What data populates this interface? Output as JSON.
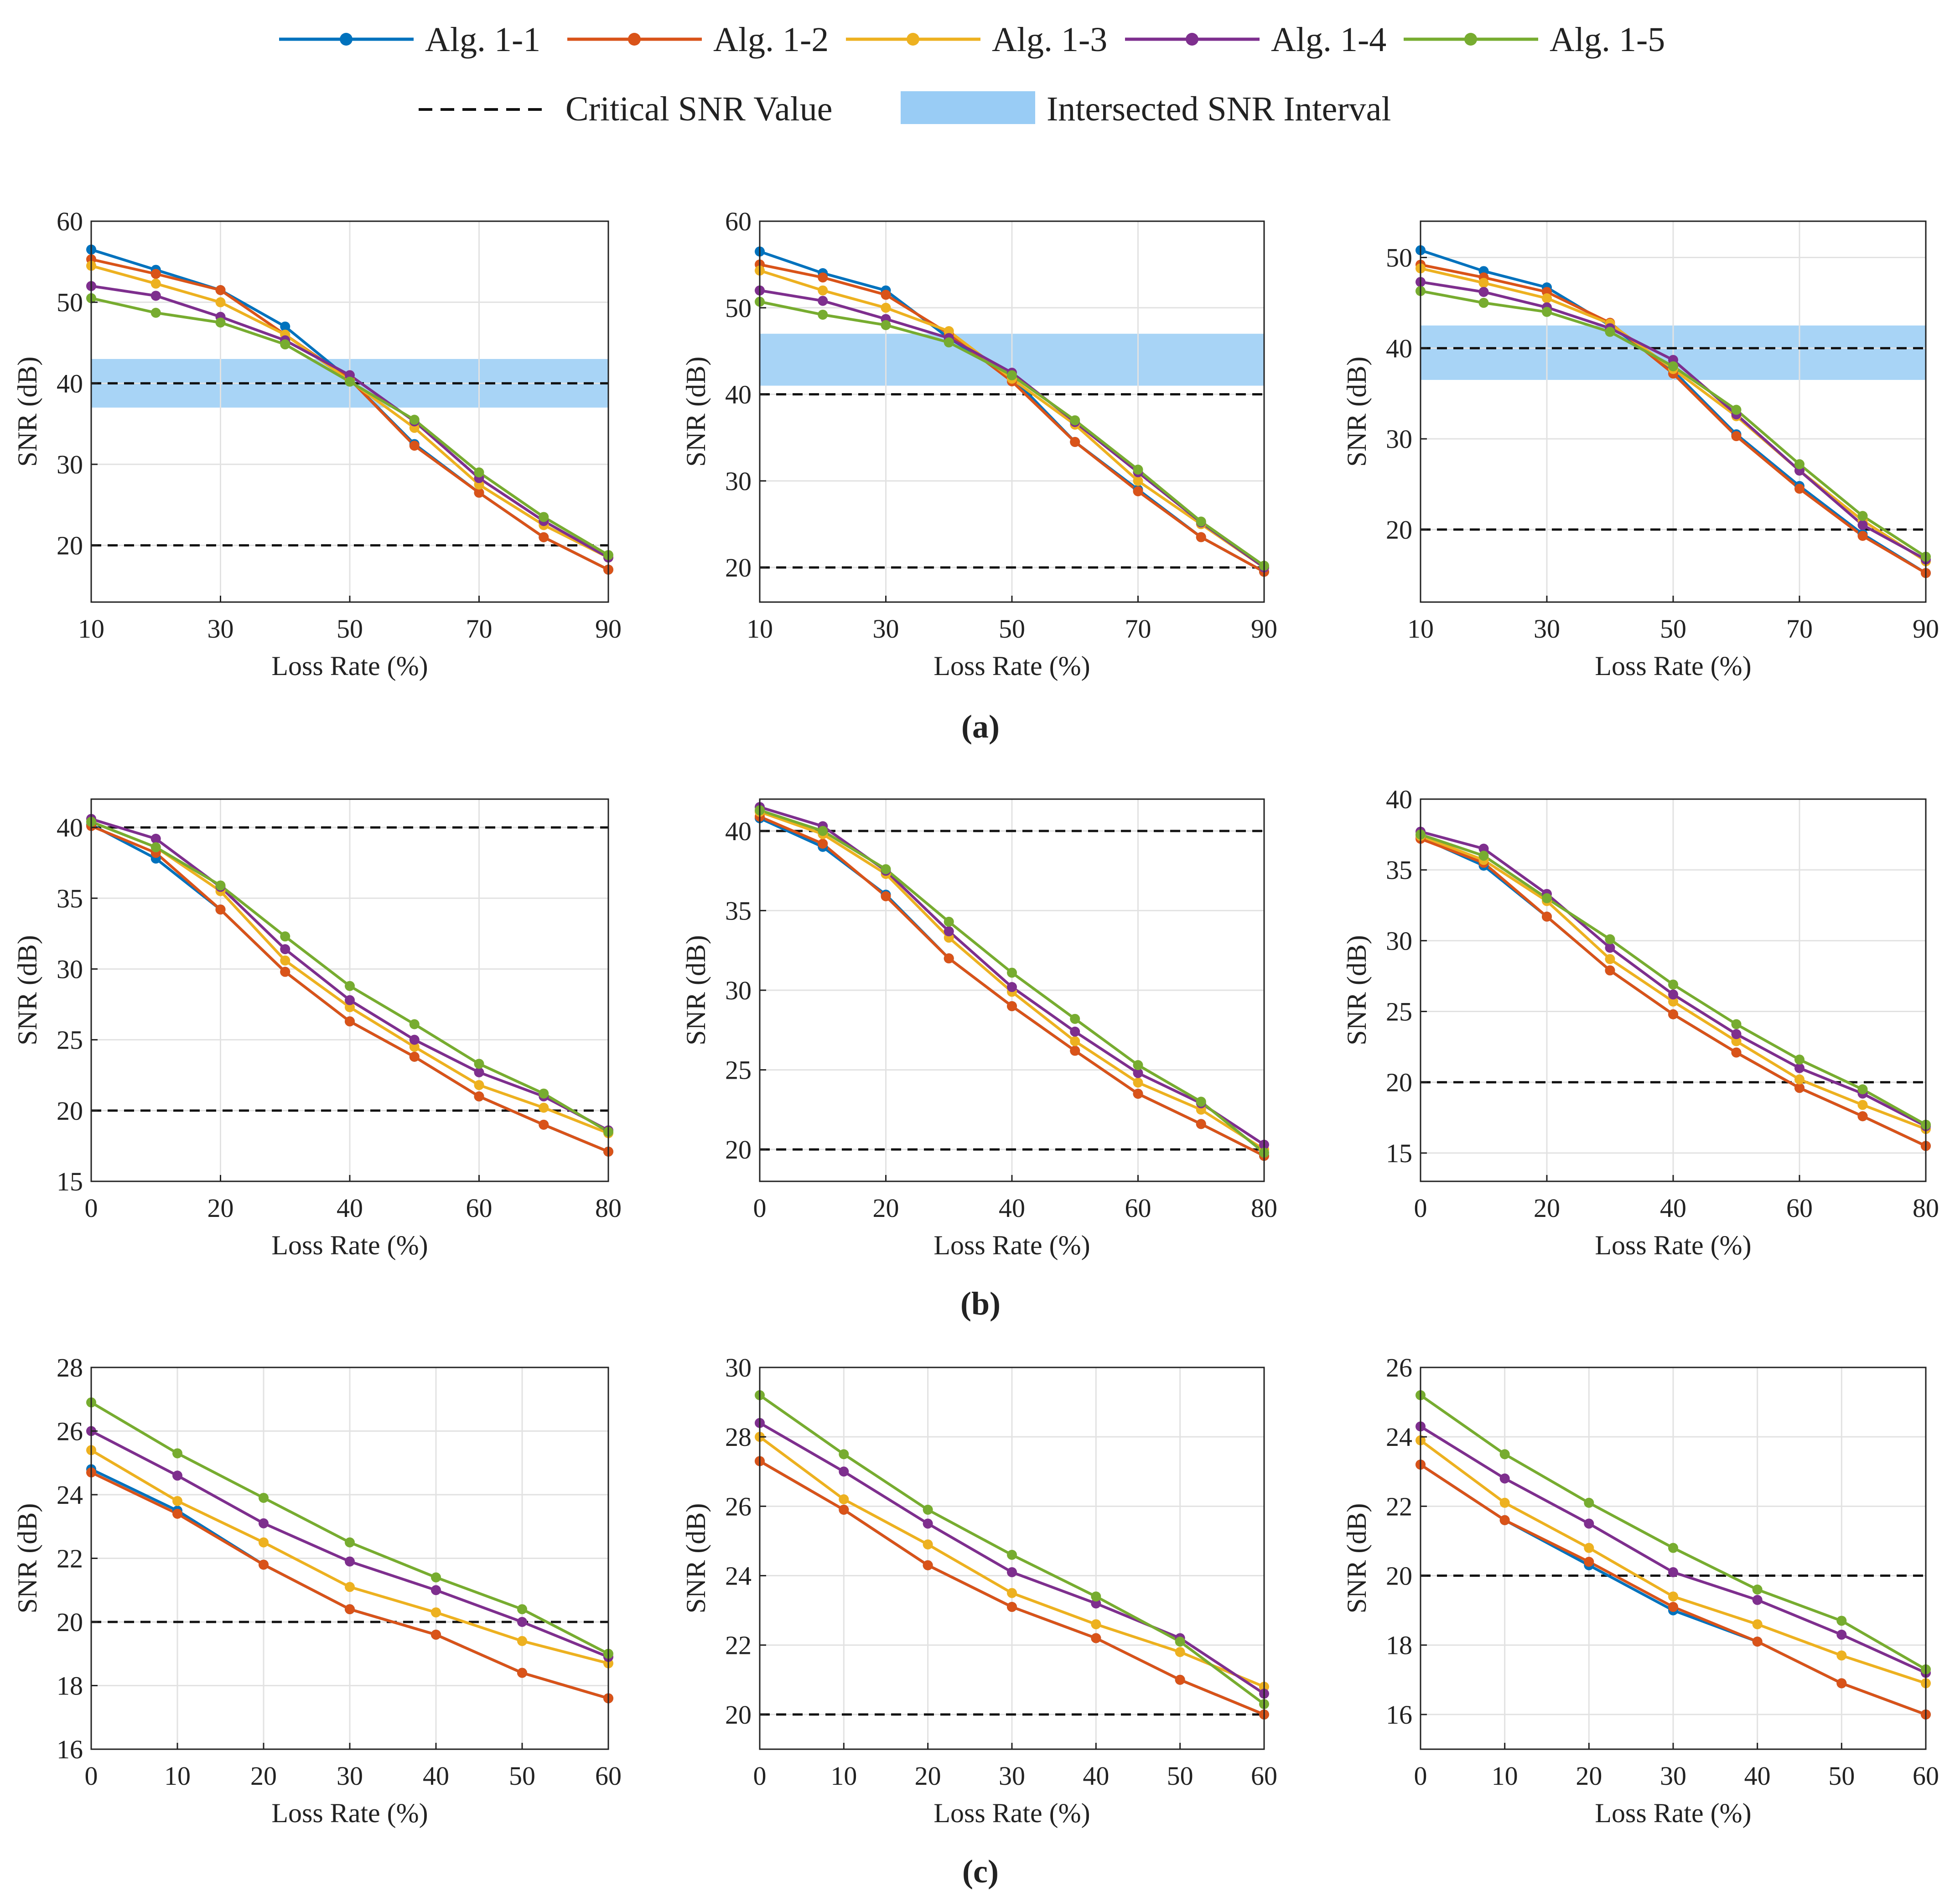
{
  "legend": {
    "items": [
      {
        "label": "Alg. 1-1",
        "color": "#0072BD"
      },
      {
        "label": "Alg. 1-2",
        "color": "#D95319"
      },
      {
        "label": "Alg. 1-3",
        "color": "#EDB120"
      },
      {
        "label": "Alg. 1-4",
        "color": "#7E2F8E"
      },
      {
        "label": "Alg. 1-5",
        "color": "#77AC30"
      }
    ],
    "critical_label": "Critical SNR Value",
    "interval_label": "Intersected SNR Interval",
    "interval_color": "#99CCF5"
  },
  "row_labels": [
    "(a)",
    "(b)",
    "(c)"
  ],
  "chart_data": [
    {
      "type": "line",
      "row": "a",
      "title": "",
      "xlabel": "Loss Rate (%)",
      "ylabel": "SNR (dB)",
      "xlim": [
        10,
        90
      ],
      "ylim": [
        13,
        60
      ],
      "xticks": [
        10,
        30,
        50,
        70,
        90
      ],
      "yticks": [
        20,
        30,
        40,
        50,
        60
      ],
      "x": [
        10,
        20,
        30,
        40,
        50,
        60,
        70,
        80,
        90
      ],
      "critical": [
        40,
        20
      ],
      "interval": [
        37,
        43
      ],
      "series": [
        {
          "name": "Alg. 1-1",
          "values": [
            56.5,
            54,
            51.5,
            47,
            40.5,
            32.5,
            26.5,
            21,
            17
          ]
        },
        {
          "name": "Alg. 1-2",
          "values": [
            55.3,
            53.5,
            51.5,
            46,
            40.5,
            32.3,
            26.5,
            21,
            17
          ]
        },
        {
          "name": "Alg. 1-3",
          "values": [
            54.5,
            52.3,
            50,
            46,
            40.3,
            34.5,
            27.5,
            22.5,
            18.5
          ]
        },
        {
          "name": "Alg. 1-4",
          "values": [
            52,
            50.8,
            48.2,
            45.3,
            41,
            35.3,
            28.3,
            23,
            18.5
          ]
        },
        {
          "name": "Alg. 1-5",
          "values": [
            50.5,
            48.7,
            47.5,
            44.8,
            40.2,
            35.5,
            29,
            23.5,
            18.8
          ]
        }
      ]
    },
    {
      "type": "line",
      "row": "a",
      "title": "",
      "xlabel": "Loss Rate (%)",
      "ylabel": "SNR (dB)",
      "xlim": [
        10,
        90
      ],
      "ylim": [
        16,
        60
      ],
      "xticks": [
        10,
        30,
        50,
        70,
        90
      ],
      "yticks": [
        20,
        30,
        40,
        50,
        60
      ],
      "x": [
        10,
        20,
        30,
        40,
        50,
        60,
        70,
        80,
        90
      ],
      "critical": [
        40,
        20
      ],
      "interval": [
        41,
        47
      ],
      "series": [
        {
          "name": "Alg. 1-1",
          "values": [
            56.5,
            54,
            52,
            46.5,
            42,
            34.5,
            29,
            23.5,
            19.5
          ]
        },
        {
          "name": "Alg. 1-2",
          "values": [
            55,
            53.5,
            51.5,
            47,
            41.5,
            34.5,
            28.8,
            23.5,
            19.5
          ]
        },
        {
          "name": "Alg. 1-3",
          "values": [
            54.3,
            52,
            50,
            47.3,
            41.8,
            36.5,
            30,
            25,
            20
          ]
        },
        {
          "name": "Alg. 1-4",
          "values": [
            52,
            50.8,
            48.7,
            46.5,
            42.5,
            36.8,
            31,
            25.2,
            20
          ]
        },
        {
          "name": "Alg. 1-5",
          "values": [
            50.7,
            49.2,
            48,
            46,
            42.2,
            37,
            31.3,
            25.3,
            20.2
          ]
        }
      ]
    },
    {
      "type": "line",
      "row": "a",
      "title": "",
      "xlabel": "Loss Rate (%)",
      "ylabel": "SNR (dB)",
      "xlim": [
        10,
        90
      ],
      "ylim": [
        12,
        54
      ],
      "xticks": [
        10,
        30,
        50,
        70,
        90
      ],
      "yticks": [
        20,
        30,
        40,
        50
      ],
      "x": [
        10,
        20,
        30,
        40,
        50,
        60,
        70,
        80,
        90
      ],
      "critical": [
        40,
        20
      ],
      "interval": [
        36.5,
        42.5
      ],
      "series": [
        {
          "name": "Alg. 1-1",
          "values": [
            50.8,
            48.5,
            46.7,
            42.5,
            37.5,
            30.5,
            24.8,
            19.5,
            15.2
          ]
        },
        {
          "name": "Alg. 1-2",
          "values": [
            49.2,
            47.8,
            46.2,
            42.8,
            37.2,
            30.3,
            24.5,
            19.3,
            15.2
          ]
        },
        {
          "name": "Alg. 1-3",
          "values": [
            48.8,
            47.2,
            45.5,
            42.7,
            37.7,
            32.5,
            26.5,
            21,
            16.5
          ]
        },
        {
          "name": "Alg. 1-4",
          "values": [
            47.3,
            46.2,
            44.5,
            42.2,
            38.7,
            32.7,
            26.5,
            20.5,
            16.7
          ]
        },
        {
          "name": "Alg. 1-5",
          "values": [
            46.3,
            45,
            44,
            41.8,
            38,
            33.2,
            27.2,
            21.5,
            17
          ]
        }
      ]
    },
    {
      "type": "line",
      "row": "b",
      "title": "",
      "xlabel": "Loss Rate (%)",
      "ylabel": "SNR (dB)",
      "xlim": [
        0,
        80
      ],
      "ylim": [
        15,
        42
      ],
      "xticks": [
        0,
        20,
        40,
        60,
        80
      ],
      "yticks": [
        15,
        20,
        25,
        30,
        35,
        40
      ],
      "x": [
        0,
        10,
        20,
        30,
        40,
        50,
        60,
        70,
        80
      ],
      "critical": [
        40,
        20
      ],
      "interval": null,
      "series": [
        {
          "name": "Alg. 1-1",
          "values": [
            40.2,
            37.8,
            34.2,
            29.8,
            26.3,
            23.8,
            21,
            19,
            17.1
          ]
        },
        {
          "name": "Alg. 1-2",
          "values": [
            40.1,
            38.2,
            34.2,
            29.8,
            26.3,
            23.8,
            21,
            19,
            17.1
          ]
        },
        {
          "name": "Alg. 1-3",
          "values": [
            40.4,
            38.6,
            35.5,
            30.6,
            27.3,
            24.5,
            21.8,
            20.2,
            18.4
          ]
        },
        {
          "name": "Alg. 1-4",
          "values": [
            40.6,
            39.2,
            35.8,
            31.4,
            27.8,
            25,
            22.7,
            21,
            18.6
          ]
        },
        {
          "name": "Alg. 1-5",
          "values": [
            40.4,
            38.6,
            35.9,
            32.3,
            28.8,
            26.1,
            23.3,
            21.2,
            18.5
          ]
        }
      ]
    },
    {
      "type": "line",
      "row": "b",
      "title": "",
      "xlabel": "Loss Rate (%)",
      "ylabel": "SNR (dB)",
      "xlim": [
        0,
        80
      ],
      "ylim": [
        18,
        42
      ],
      "xticks": [
        0,
        20,
        40,
        60,
        80
      ],
      "yticks": [
        20,
        25,
        30,
        35,
        40
      ],
      "x": [
        0,
        10,
        20,
        30,
        40,
        50,
        60,
        70,
        80
      ],
      "critical": [
        40,
        20
      ],
      "interval": null,
      "series": [
        {
          "name": "Alg. 1-1",
          "values": [
            40.8,
            39,
            36,
            32,
            29,
            26.2,
            23.5,
            21.6,
            19.6
          ]
        },
        {
          "name": "Alg. 1-2",
          "values": [
            40.9,
            39.2,
            35.9,
            32,
            29,
            26.2,
            23.5,
            21.6,
            19.6
          ]
        },
        {
          "name": "Alg. 1-3",
          "values": [
            41.2,
            39.8,
            37.3,
            33.3,
            29.9,
            26.8,
            24.2,
            22.5,
            20
          ]
        },
        {
          "name": "Alg. 1-4",
          "values": [
            41.5,
            40.3,
            37.5,
            33.7,
            30.2,
            27.4,
            24.8,
            22.9,
            20.3
          ]
        },
        {
          "name": "Alg. 1-5",
          "values": [
            41.3,
            40,
            37.6,
            34.3,
            31.1,
            28.2,
            25.3,
            23,
            19.8
          ]
        }
      ]
    },
    {
      "type": "line",
      "row": "b",
      "title": "",
      "xlabel": "Loss Rate (%)",
      "ylabel": "SNR (dB)",
      "xlim": [
        0,
        80
      ],
      "ylim": [
        13,
        40
      ],
      "xticks": [
        0,
        20,
        40,
        60,
        80
      ],
      "yticks": [
        15,
        20,
        25,
        30,
        35,
        40
      ],
      "x": [
        0,
        10,
        20,
        30,
        40,
        50,
        60,
        70,
        80
      ],
      "critical": [
        20
      ],
      "interval": null,
      "series": [
        {
          "name": "Alg. 1-1",
          "values": [
            37.3,
            35.3,
            31.7,
            27.9,
            24.8,
            22.1,
            19.6,
            17.6,
            15.5
          ]
        },
        {
          "name": "Alg. 1-2",
          "values": [
            37.2,
            35.5,
            31.7,
            27.9,
            24.8,
            22.1,
            19.6,
            17.6,
            15.5
          ]
        },
        {
          "name": "Alg. 1-3",
          "values": [
            37.4,
            35.7,
            32.8,
            28.7,
            25.7,
            22.9,
            20.2,
            18.4,
            16.7
          ]
        },
        {
          "name": "Alg. 1-4",
          "values": [
            37.7,
            36.5,
            33.3,
            29.5,
            26.2,
            23.4,
            21,
            19.2,
            16.9
          ]
        },
        {
          "name": "Alg. 1-5",
          "values": [
            37.5,
            36,
            33,
            30.1,
            26.9,
            24.1,
            21.6,
            19.5,
            17
          ]
        }
      ]
    },
    {
      "type": "line",
      "row": "c",
      "title": "",
      "xlabel": "Loss Rate (%)",
      "ylabel": "SNR (dB)",
      "xlim": [
        0,
        60
      ],
      "ylim": [
        16,
        28
      ],
      "xticks": [
        0,
        10,
        20,
        30,
        40,
        50,
        60
      ],
      "yticks": [
        16,
        18,
        20,
        22,
        24,
        26,
        28
      ],
      "x": [
        0,
        10,
        20,
        30,
        40,
        50,
        60
      ],
      "critical": [
        20
      ],
      "interval": null,
      "series": [
        {
          "name": "Alg. 1-1",
          "values": [
            24.8,
            23.5,
            21.8,
            20.4,
            19.6,
            18.4,
            17.6
          ]
        },
        {
          "name": "Alg. 1-2",
          "values": [
            24.7,
            23.4,
            21.8,
            20.4,
            19.6,
            18.4,
            17.6
          ]
        },
        {
          "name": "Alg. 1-3",
          "values": [
            25.4,
            23.8,
            22.5,
            21.1,
            20.3,
            19.4,
            18.7
          ]
        },
        {
          "name": "Alg. 1-4",
          "values": [
            26,
            24.6,
            23.1,
            21.9,
            21,
            20,
            18.9
          ]
        },
        {
          "name": "Alg. 1-5",
          "values": [
            26.9,
            25.3,
            23.9,
            22.5,
            21.4,
            20.4,
            19
          ]
        }
      ]
    },
    {
      "type": "line",
      "row": "c",
      "title": "",
      "xlabel": "Loss Rate (%)",
      "ylabel": "SNR (dB)",
      "xlim": [
        0,
        60
      ],
      "ylim": [
        19,
        30
      ],
      "xticks": [
        0,
        10,
        20,
        30,
        40,
        50,
        60
      ],
      "yticks": [
        20,
        22,
        24,
        26,
        28,
        30
      ],
      "x": [
        0,
        10,
        20,
        30,
        40,
        50,
        60
      ],
      "critical": [
        20
      ],
      "interval": null,
      "series": [
        {
          "name": "Alg. 1-1",
          "values": [
            27.3,
            25.9,
            24.3,
            23.1,
            22.2,
            21,
            20
          ]
        },
        {
          "name": "Alg. 1-2",
          "values": [
            27.3,
            25.9,
            24.3,
            23.1,
            22.2,
            21,
            20
          ]
        },
        {
          "name": "Alg. 1-3",
          "values": [
            28,
            26.2,
            24.9,
            23.5,
            22.6,
            21.8,
            20.8
          ]
        },
        {
          "name": "Alg. 1-4",
          "values": [
            28.4,
            27,
            25.5,
            24.1,
            23.2,
            22.2,
            20.6
          ]
        },
        {
          "name": "Alg. 1-5",
          "values": [
            29.2,
            27.5,
            25.9,
            24.6,
            23.4,
            22.1,
            20.3
          ]
        }
      ]
    },
    {
      "type": "line",
      "row": "c",
      "title": "",
      "xlabel": "Loss Rate (%)",
      "ylabel": "SNR (dB)",
      "xlim": [
        0,
        60
      ],
      "ylim": [
        15,
        26
      ],
      "xticks": [
        0,
        10,
        20,
        30,
        40,
        50,
        60
      ],
      "yticks": [
        16,
        18,
        20,
        22,
        24,
        26
      ],
      "x": [
        0,
        10,
        20,
        30,
        40,
        50,
        60
      ],
      "critical": [
        20
      ],
      "interval": null,
      "series": [
        {
          "name": "Alg. 1-1",
          "values": [
            23.2,
            21.6,
            20.3,
            19,
            18.1,
            16.9,
            16
          ]
        },
        {
          "name": "Alg. 1-2",
          "values": [
            23.2,
            21.6,
            20.4,
            19.1,
            18.1,
            16.9,
            16
          ]
        },
        {
          "name": "Alg. 1-3",
          "values": [
            23.9,
            22.1,
            20.8,
            19.4,
            18.6,
            17.7,
            16.9
          ]
        },
        {
          "name": "Alg. 1-4",
          "values": [
            24.3,
            22.8,
            21.5,
            20.1,
            19.3,
            18.3,
            17.2
          ]
        },
        {
          "name": "Alg. 1-5",
          "values": [
            25.2,
            23.5,
            22.1,
            20.8,
            19.6,
            18.7,
            17.3
          ]
        }
      ]
    }
  ]
}
